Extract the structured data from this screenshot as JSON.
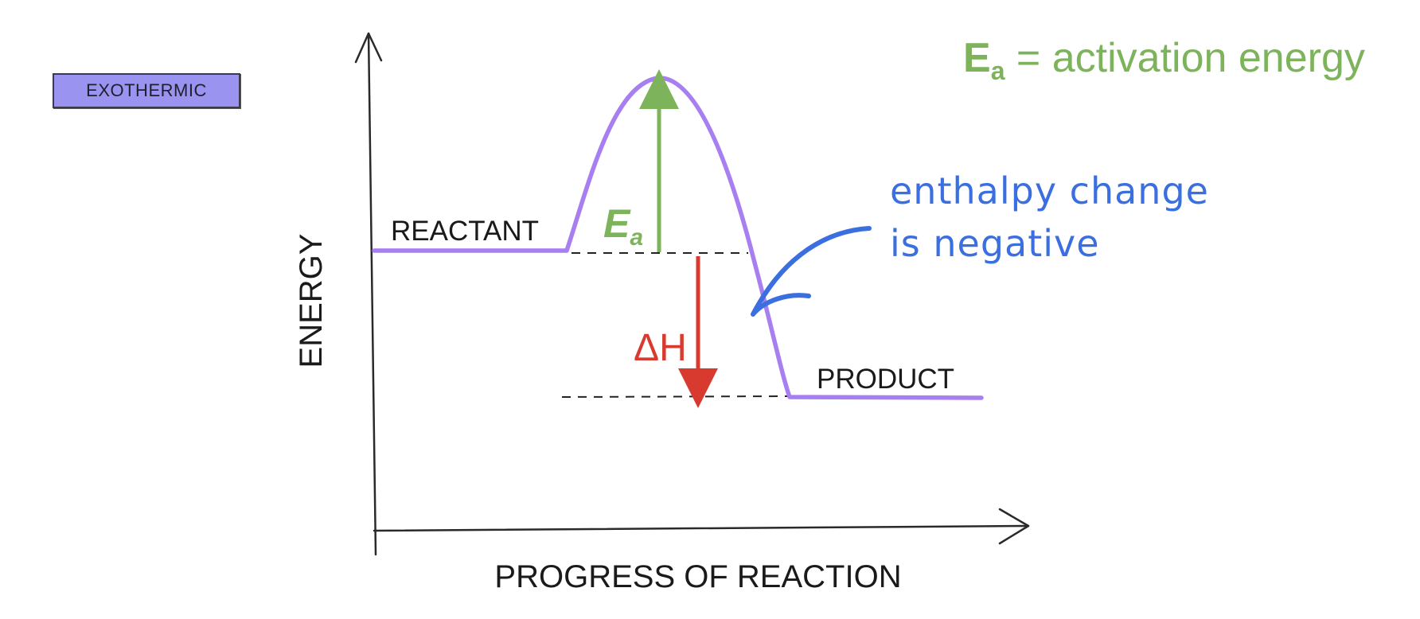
{
  "tag": {
    "label": "EXOTHERMIC",
    "color": "#9a93ef"
  },
  "axes": {
    "y_label": "ENERGY",
    "x_label": "PROGRESS OF REACTION"
  },
  "levels": {
    "reactant_label": "REACTANT",
    "product_label": "PRODUCT"
  },
  "activation": {
    "symbol_main": "E",
    "symbol_sub": "a",
    "color": "#7db35a"
  },
  "enthalpy": {
    "symbol": "ΔH",
    "color": "#d83a2f"
  },
  "legend": {
    "symbol_main": "E",
    "symbol_sub": "a",
    "text": " = activation energy"
  },
  "note": {
    "line1": "enthalpy change",
    "line2": "is negative",
    "color": "#3b6fe0"
  },
  "curve_color": "#a77ff0"
}
